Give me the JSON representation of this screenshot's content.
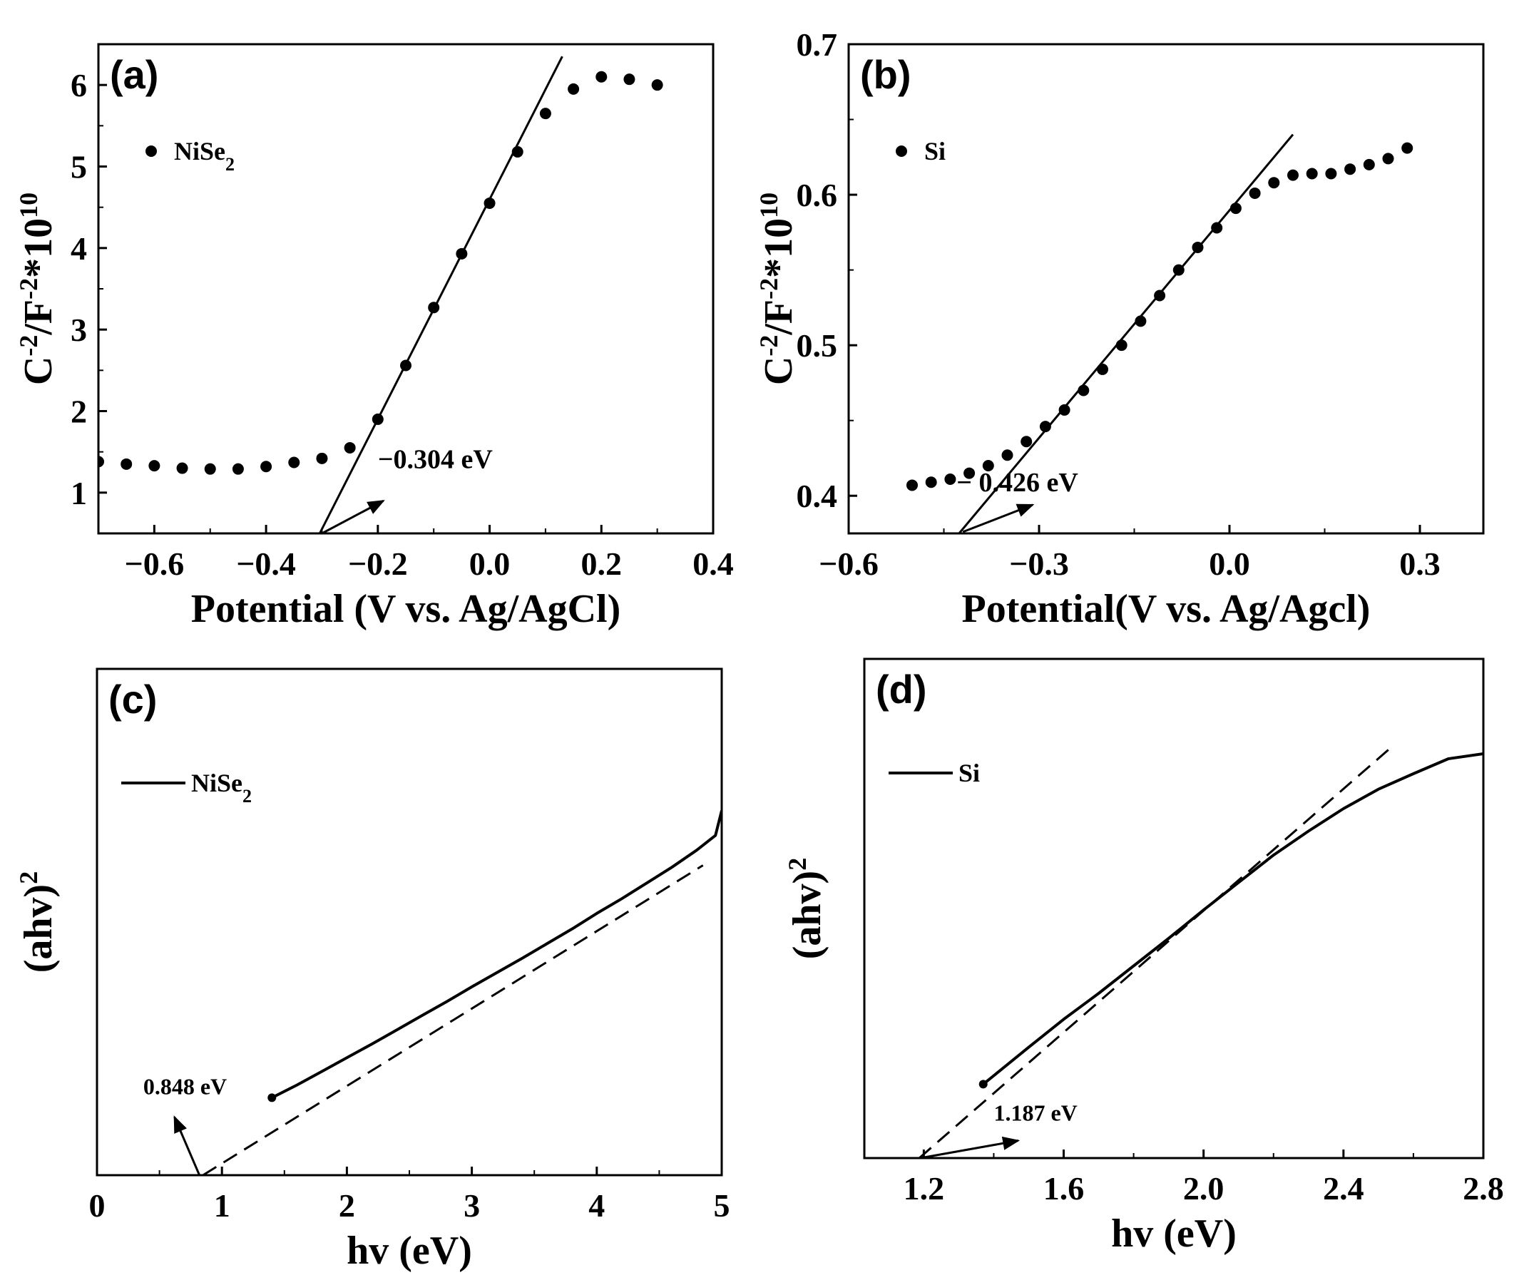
{
  "figure_title": "",
  "chart_data": [
    {
      "id": "a",
      "type": "scatter",
      "panel_label": "(a)",
      "xlabel": "Potential (V vs. Ag/AgCl)",
      "ylabel": {
        "base": "C",
        "exp1": "-2",
        "mid": "/F",
        "exp2": "-2",
        "tail": "*10",
        "exp3": "10"
      },
      "xlim": [
        -0.7,
        0.4
      ],
      "ylim": [
        0.5,
        6.5
      ],
      "xticks": [
        -0.6,
        -0.4,
        -0.2,
        0.0,
        0.2,
        0.4
      ],
      "xtick_labels": [
        "-0.6",
        "-0.4",
        "-0.2",
        "0.0",
        "0.2",
        "0.4"
      ],
      "yticks": [
        1,
        2,
        3,
        4,
        5,
        6
      ],
      "ytick_labels": [
        "1",
        "2",
        "3",
        "4",
        "5",
        "6"
      ],
      "legend": {
        "label": "NiSe",
        "sub": "2",
        "position": "upper-left"
      },
      "series": [
        {
          "name": "NiSe2",
          "x": [
            -0.7,
            -0.65,
            -0.6,
            -0.55,
            -0.5,
            -0.45,
            -0.4,
            -0.35,
            -0.3,
            -0.25,
            -0.2,
            -0.15,
            -0.1,
            -0.05,
            0.0,
            0.05,
            0.1,
            0.15,
            0.2,
            0.25,
            0.3
          ],
          "y": [
            1.38,
            1.35,
            1.33,
            1.3,
            1.29,
            1.29,
            1.32,
            1.37,
            1.42,
            1.55,
            1.9,
            2.56,
            3.27,
            3.93,
            4.55,
            5.18,
            5.65,
            5.95,
            6.1,
            6.07,
            6.0
          ]
        }
      ],
      "fit_line": {
        "x": [
          -0.304,
          0.13
        ],
        "y": [
          0.5,
          6.35
        ]
      },
      "annotation": {
        "text": "−0.304 eV",
        "arrow_from": [
          -0.3,
          0.5
        ],
        "arrow_to": [
          -0.19,
          0.9
        ],
        "text_at": [
          -0.2,
          1.3
        ]
      }
    },
    {
      "id": "b",
      "type": "scatter",
      "panel_label": "(b)",
      "xlabel": "Potential(V vs. Ag/Agcl)",
      "ylabel": {
        "base": "C",
        "exp1": "-2",
        "mid": "/F",
        "exp2": "-2",
        "tail": "*10",
        "exp3": "10"
      },
      "xlim": [
        -0.6,
        0.4
      ],
      "ylim": [
        0.375,
        0.7
      ],
      "xticks": [
        -0.6,
        -0.3,
        0.0,
        0.3
      ],
      "xtick_labels": [
        "-0.6",
        "-0.3",
        "0.0",
        "0.3"
      ],
      "yticks": [
        0.4,
        0.5,
        0.6,
        0.7
      ],
      "ytick_labels": [
        "0.4",
        "0.5",
        "0.6",
        "0.7"
      ],
      "legend": {
        "label": "Si",
        "sub": "",
        "position": "upper-left"
      },
      "series": [
        {
          "name": "Si",
          "x": [
            -0.5,
            -0.47,
            -0.44,
            -0.41,
            -0.38,
            -0.35,
            -0.32,
            -0.29,
            -0.26,
            -0.23,
            -0.2,
            -0.17,
            -0.14,
            -0.11,
            -0.08,
            -0.05,
            -0.02,
            0.01,
            0.04,
            0.07,
            0.1,
            0.13,
            0.16,
            0.19,
            0.22,
            0.25,
            0.28
          ],
          "y": [
            0.407,
            0.409,
            0.411,
            0.415,
            0.42,
            0.427,
            0.436,
            0.446,
            0.457,
            0.47,
            0.484,
            0.5,
            0.516,
            0.533,
            0.55,
            0.565,
            0.578,
            0.591,
            0.601,
            0.608,
            0.613,
            0.614,
            0.614,
            0.617,
            0.62,
            0.624,
            0.631
          ]
        }
      ],
      "fit_line": {
        "x": [
          -0.426,
          0.1
        ],
        "y": [
          0.375,
          0.64
        ]
      },
      "annotation": {
        "text": "− 0.426 eV",
        "arrow_from": [
          -0.42,
          0.376
        ],
        "arrow_to": [
          -0.31,
          0.394
        ],
        "text_at": [
          -0.43,
          0.403
        ]
      }
    },
    {
      "id": "c",
      "type": "line",
      "panel_label": "(c)",
      "xlabel": "hv (eV)",
      "ylabel": {
        "base": "(ahv)",
        "exp1": "2"
      },
      "xlim": [
        0,
        5
      ],
      "ylim": [
        0,
        1
      ],
      "xticks": [
        0,
        1,
        2,
        3,
        4,
        5
      ],
      "xtick_labels": [
        "0",
        "1",
        "2",
        "3",
        "4",
        "5"
      ],
      "yticks": [],
      "legend": {
        "label": "NiSe",
        "sub": "2",
        "position": "upper-left"
      },
      "series": [
        {
          "name": "NiSe2",
          "x": [
            1.4,
            1.6,
            1.8,
            2.0,
            2.2,
            2.4,
            2.6,
            2.8,
            3.0,
            3.2,
            3.4,
            3.6,
            3.8,
            4.0,
            4.2,
            4.4,
            4.6,
            4.8,
            4.95,
            5.0
          ],
          "y": [
            0.153,
            0.178,
            0.205,
            0.232,
            0.259,
            0.287,
            0.315,
            0.343,
            0.372,
            0.4,
            0.428,
            0.457,
            0.486,
            0.517,
            0.546,
            0.577,
            0.608,
            0.642,
            0.671,
            0.72
          ]
        }
      ],
      "fit_line": {
        "x": [
          0.848,
          4.85
        ],
        "y": [
          0.0,
          0.612
        ]
      },
      "annotation": {
        "text": "0.848 eV",
        "arrow_from": [
          0.82,
          0.0
        ],
        "arrow_to": [
          0.62,
          0.115
        ],
        "text_at": [
          0.37,
          0.16
        ]
      }
    },
    {
      "id": "d",
      "type": "line",
      "panel_label": "(d)",
      "xlabel": "hv (eV)",
      "ylabel": {
        "base": "(ahv)",
        "exp1": "2"
      },
      "xlim": [
        1.03,
        2.8
      ],
      "ylim": [
        0,
        1
      ],
      "xticks": [
        1.2,
        1.6,
        2.0,
        2.4,
        2.8
      ],
      "xtick_labels": [
        "1.2",
        "1.6",
        "2.0",
        "2.4",
        "2.8"
      ],
      "yticks": [],
      "legend": {
        "label": "Si",
        "sub": "",
        "position": "upper-left"
      },
      "series": [
        {
          "name": "Si",
          "x": [
            1.37,
            1.4,
            1.5,
            1.6,
            1.7,
            1.8,
            1.9,
            2.0,
            2.1,
            2.2,
            2.3,
            2.4,
            2.5,
            2.6,
            2.7,
            2.8
          ],
          "y": [
            0.148,
            0.165,
            0.222,
            0.278,
            0.33,
            0.385,
            0.44,
            0.497,
            0.552,
            0.607,
            0.655,
            0.7,
            0.739,
            0.77,
            0.8,
            0.81
          ]
        }
      ],
      "fit_line": {
        "x": [
          1.187,
          2.54
        ],
        "y": [
          0.0,
          0.825
        ]
      },
      "annotation": {
        "text": "1.187 eV",
        "arrow_from": [
          1.19,
          0.0
        ],
        "arrow_to": [
          1.47,
          0.035
        ],
        "text_at": [
          1.4,
          0.075
        ]
      }
    }
  ]
}
